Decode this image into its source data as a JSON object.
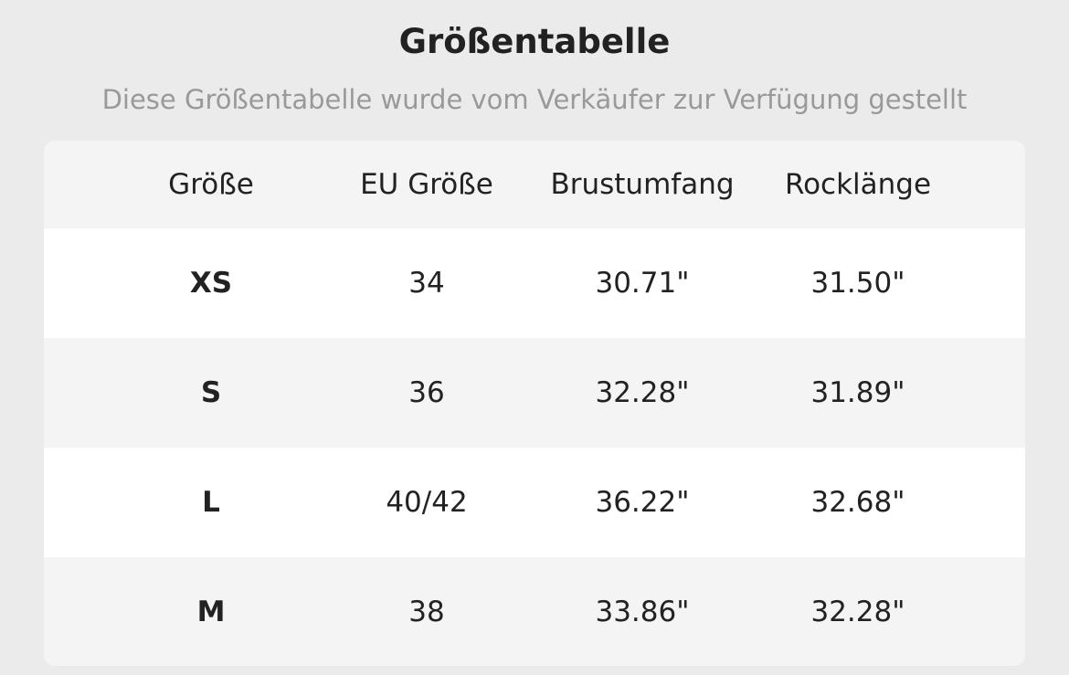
{
  "header": {
    "title": "Größentabelle",
    "subtitle": "Diese Größentabelle wurde vom Verkäufer zur Verfügung gestellt"
  },
  "table": {
    "columns": [
      "Größe",
      "EU Größe",
      "Brustumfang",
      "Rocklänge"
    ],
    "rows": [
      [
        "XS",
        "34",
        "30.71\"",
        "31.50\""
      ],
      [
        "S",
        "36",
        "32.28\"",
        "31.89\""
      ],
      [
        "L",
        "40/42",
        "36.22\"",
        "32.68\""
      ],
      [
        "M",
        "38",
        "33.86\"",
        "32.28\""
      ]
    ]
  }
}
